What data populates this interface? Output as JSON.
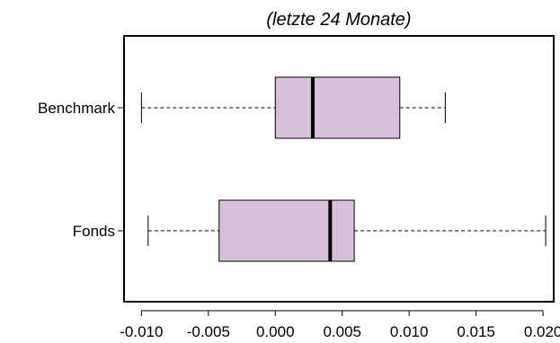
{
  "chart_data": {
    "type": "boxplot",
    "orientation": "horizontal",
    "title": "(letzte 24 Monate)",
    "xlabel": "",
    "ylabel": "",
    "xlim": [
      -0.0113,
      0.0208
    ],
    "x_ticks": [
      -0.01,
      -0.005,
      0.0,
      0.005,
      0.01,
      0.015,
      0.02
    ],
    "x_tick_labels": [
      "-0.010",
      "-0.005",
      "0.000",
      "0.005",
      "0.010",
      "0.015",
      "0.020"
    ],
    "grid": false,
    "box_fill": "#d7bfd9",
    "box_stroke": "#000000",
    "categories": [
      "Benchmark",
      "Fonds"
    ],
    "series": [
      {
        "name": "Benchmark",
        "whisker_low": -0.01,
        "q1": 0.0,
        "median": 0.0028,
        "q3": 0.0093,
        "whisker_high": 0.0127
      },
      {
        "name": "Fonds",
        "whisker_low": -0.0095,
        "q1": -0.0042,
        "median": 0.0041,
        "q3": 0.0059,
        "whisker_high": 0.0202
      }
    ]
  }
}
